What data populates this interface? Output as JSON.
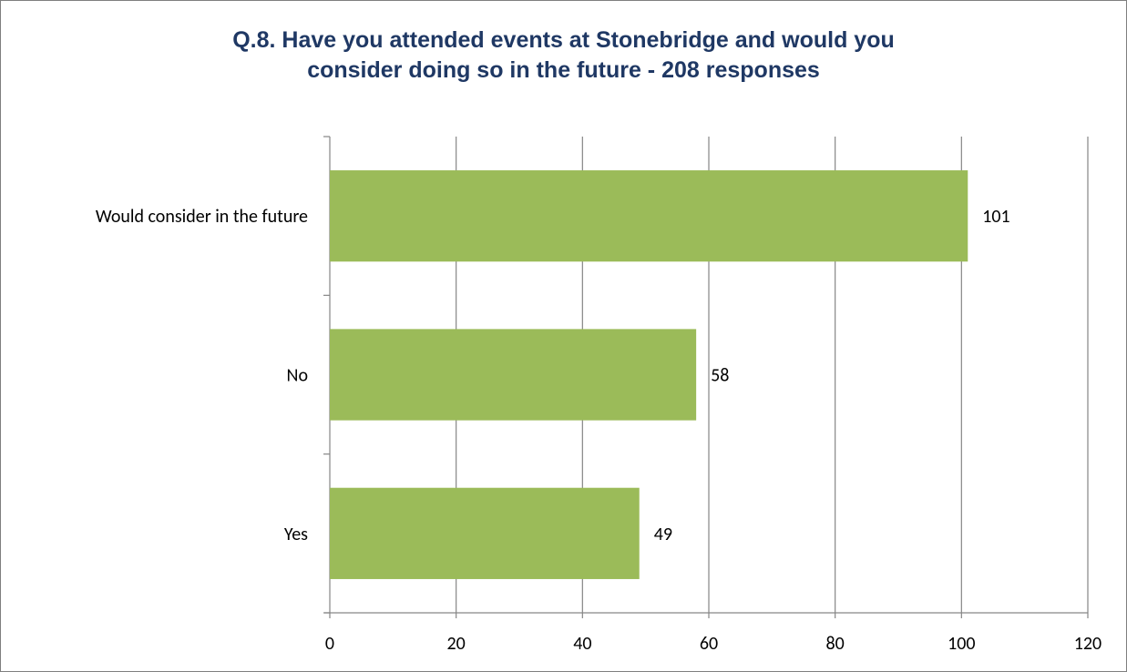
{
  "chart_data": {
    "type": "bar",
    "orientation": "horizontal",
    "title_lines": [
      "Q.8. Have you attended events at Stonebridge and would you",
      "consider doing so in the future - 208 responses"
    ],
    "categories": [
      "Would consider in the future",
      "No",
      "Yes"
    ],
    "values": [
      101,
      58,
      49
    ],
    "xlim": [
      0,
      120
    ],
    "x_ticks": [
      0,
      20,
      40,
      60,
      80,
      100,
      120
    ],
    "grid": true,
    "data_labels": true,
    "bar_color": "#9bbb59",
    "gridline_color": "#868686"
  }
}
